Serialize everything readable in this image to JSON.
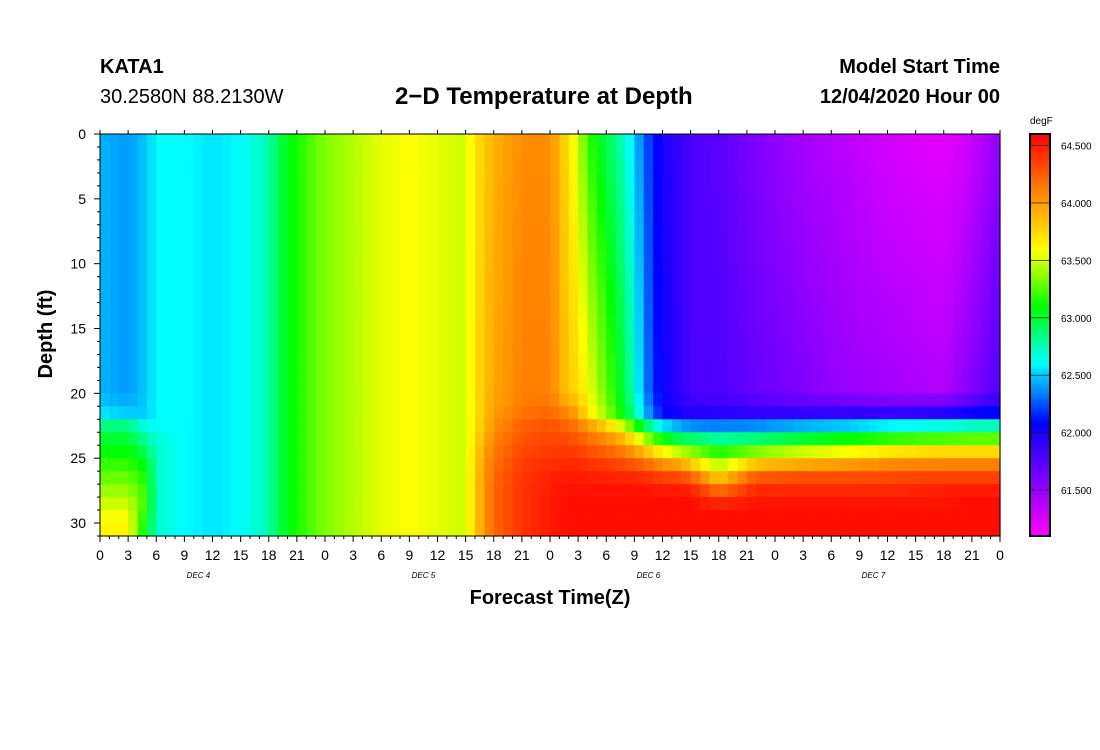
{
  "header": {
    "station": "KATA1",
    "coords": "30.2580N 88.2130W",
    "title": "2−D Temperature at Depth",
    "start_label": "Model Start Time",
    "start_value": "12/04/2020 Hour 00"
  },
  "chart_data": {
    "type": "heatmap",
    "title": "2−D Temperature at Depth",
    "xlabel": "Forecast Time(Z)",
    "ylabel": "Depth (ft)",
    "x_range_hours": [
      0,
      96
    ],
    "x_tick_labels": [
      "0",
      "3",
      "6",
      "9",
      "12",
      "15",
      "18",
      "21",
      "0",
      "3",
      "6",
      "9",
      "12",
      "15",
      "18",
      "21",
      "0",
      "3",
      "6",
      "9",
      "12",
      "15",
      "18",
      "21",
      "0",
      "3",
      "6",
      "9",
      "12",
      "15",
      "18",
      "21",
      "0"
    ],
    "day_labels": [
      {
        "label": "DEC 4",
        "hour": 10.5
      },
      {
        "label": "DEC 5",
        "hour": 34.5
      },
      {
        "label": "DEC 6",
        "hour": 58.5
      },
      {
        "label": "DEC 7",
        "hour": 82.5
      }
    ],
    "y_range": [
      0,
      31
    ],
    "y_ticks": [
      0,
      5,
      10,
      15,
      20,
      25,
      30
    ],
    "y_tick_labels": [
      "0",
      "5",
      "10",
      "15",
      "20",
      "25",
      "30"
    ],
    "colorbar": {
      "unit": "degF",
      "min": 61.1,
      "max": 64.6,
      "labels": [
        "64.500",
        "64.000",
        "63.500",
        "63.000",
        "62.500",
        "62.000",
        "61.500"
      ],
      "label_values": [
        64.5,
        64.0,
        63.5,
        63.0,
        62.5,
        62.0,
        61.5
      ],
      "colors": [
        "#ff00ff",
        "#8000ff",
        "#0000ff",
        "#00ffff",
        "#00ff00",
        "#ffff00",
        "#ff8000",
        "#ff0000"
      ]
    },
    "column_hours": [
      0,
      3,
      5,
      6,
      9,
      12,
      15,
      18,
      19,
      21,
      24,
      27,
      30,
      33,
      36,
      39,
      40,
      42,
      45,
      48,
      50,
      51,
      52,
      54,
      56,
      57,
      58,
      59,
      60,
      62,
      63,
      66,
      70,
      75,
      80,
      85,
      90,
      93,
      96
    ],
    "depth_profile_ft": [
      0,
      20,
      21.5,
      22,
      23,
      24,
      25,
      26,
      27,
      28,
      29,
      30,
      31
    ],
    "temperature_degF": [
      [
        62.45,
        62.45,
        62.55,
        62.75,
        62.95,
        63.05,
        63.15,
        63.25,
        63.35,
        63.45,
        63.55,
        63.62,
        63.65
      ],
      [
        62.4,
        62.4,
        62.5,
        62.75,
        62.95,
        63.05,
        63.15,
        63.25,
        63.35,
        63.45,
        63.55,
        63.62,
        63.65
      ],
      [
        62.5,
        62.5,
        62.5,
        62.55,
        62.7,
        62.85,
        63.0,
        63.1,
        63.15,
        63.2,
        63.15,
        63.05,
        63.0
      ],
      [
        62.6,
        62.6,
        62.6,
        62.6,
        62.65,
        62.7,
        62.7,
        62.7,
        62.7,
        62.7,
        62.7,
        62.7,
        62.7
      ],
      [
        62.6,
        62.6,
        62.6,
        62.6,
        62.6,
        62.6,
        62.6,
        62.6,
        62.6,
        62.6,
        62.6,
        62.6,
        62.6
      ],
      [
        62.55,
        62.55,
        62.55,
        62.55,
        62.55,
        62.55,
        62.55,
        62.55,
        62.55,
        62.55,
        62.55,
        62.55,
        62.55
      ],
      [
        62.6,
        62.6,
        62.6,
        62.6,
        62.6,
        62.6,
        62.6,
        62.6,
        62.6,
        62.6,
        62.6,
        62.6,
        62.6
      ],
      [
        62.75,
        62.75,
        62.75,
        62.75,
        62.75,
        62.75,
        62.75,
        62.75,
        62.75,
        62.75,
        62.75,
        62.75,
        62.75
      ],
      [
        62.95,
        62.95,
        62.95,
        62.95,
        62.95,
        62.95,
        62.95,
        62.95,
        62.95,
        62.95,
        62.95,
        62.95,
        62.95
      ],
      [
        63.15,
        63.15,
        63.15,
        63.15,
        63.15,
        63.15,
        63.15,
        63.15,
        63.15,
        63.15,
        63.15,
        63.15,
        63.15
      ],
      [
        63.35,
        63.35,
        63.35,
        63.35,
        63.35,
        63.35,
        63.35,
        63.35,
        63.35,
        63.35,
        63.35,
        63.35,
        63.35
      ],
      [
        63.45,
        63.45,
        63.45,
        63.45,
        63.45,
        63.45,
        63.45,
        63.45,
        63.45,
        63.45,
        63.45,
        63.45,
        63.45
      ],
      [
        63.55,
        63.55,
        63.55,
        63.55,
        63.55,
        63.55,
        63.55,
        63.55,
        63.55,
        63.55,
        63.55,
        63.55,
        63.55
      ],
      [
        63.6,
        63.6,
        63.6,
        63.6,
        63.6,
        63.6,
        63.6,
        63.6,
        63.6,
        63.6,
        63.6,
        63.6,
        63.6
      ],
      [
        63.55,
        63.55,
        63.55,
        63.55,
        63.55,
        63.55,
        63.55,
        63.55,
        63.55,
        63.55,
        63.55,
        63.55,
        63.55
      ],
      [
        63.5,
        63.5,
        63.5,
        63.5,
        63.5,
        63.5,
        63.5,
        63.5,
        63.5,
        63.5,
        63.5,
        63.5,
        63.5
      ],
      [
        63.7,
        63.7,
        63.7,
        63.7,
        63.72,
        63.75,
        63.78,
        63.8,
        63.8,
        63.8,
        63.8,
        63.8,
        63.8
      ],
      [
        63.9,
        63.95,
        63.98,
        64.0,
        64.05,
        64.1,
        64.15,
        64.18,
        64.2,
        64.2,
        64.2,
        64.2,
        64.2
      ],
      [
        64.05,
        64.1,
        64.15,
        64.2,
        64.25,
        64.3,
        64.35,
        64.38,
        64.4,
        64.4,
        64.4,
        64.4,
        64.4
      ],
      [
        64.05,
        64.1,
        64.2,
        64.25,
        64.3,
        64.35,
        64.4,
        64.45,
        64.48,
        64.5,
        64.5,
        64.5,
        64.5
      ],
      [
        63.7,
        63.8,
        64.05,
        64.15,
        64.25,
        64.35,
        64.4,
        64.48,
        64.52,
        64.55,
        64.55,
        64.55,
        64.55
      ],
      [
        63.5,
        63.75,
        63.95,
        64.05,
        64.2,
        64.3,
        64.4,
        64.48,
        64.52,
        64.55,
        64.55,
        64.55,
        64.55
      ],
      [
        63.2,
        63.6,
        63.7,
        63.9,
        64.1,
        64.25,
        64.35,
        64.45,
        64.5,
        64.55,
        64.55,
        64.55,
        64.55
      ],
      [
        62.95,
        63.3,
        63.4,
        63.6,
        63.95,
        64.15,
        64.3,
        64.45,
        64.5,
        64.55,
        64.55,
        64.55,
        64.55
      ],
      [
        62.7,
        62.95,
        63.05,
        63.2,
        63.7,
        64.0,
        64.2,
        64.4,
        64.5,
        64.55,
        64.55,
        64.55,
        64.55
      ],
      [
        62.5,
        62.7,
        62.8,
        62.95,
        63.5,
        63.85,
        64.15,
        64.4,
        64.5,
        64.55,
        64.55,
        64.55,
        64.55
      ],
      [
        62.3,
        62.4,
        62.5,
        62.7,
        63.2,
        63.7,
        64.05,
        64.35,
        64.5,
        64.55,
        64.55,
        64.55,
        64.55
      ],
      [
        62.15,
        62.2,
        62.3,
        62.5,
        63.0,
        63.55,
        63.95,
        64.3,
        64.48,
        64.55,
        64.55,
        64.55,
        64.55
      ],
      [
        62.0,
        62.05,
        62.1,
        62.3,
        62.8,
        63.4,
        63.85,
        64.25,
        64.45,
        64.55,
        64.55,
        64.55,
        64.55
      ],
      [
        61.9,
        61.9,
        62.0,
        62.2,
        62.65,
        63.2,
        63.7,
        64.2,
        64.45,
        64.55,
        64.55,
        64.55,
        64.55
      ],
      [
        61.8,
        61.8,
        61.95,
        62.1,
        62.65,
        63.15,
        63.6,
        64.05,
        64.4,
        64.55,
        64.55,
        64.55,
        64.55
      ],
      [
        61.75,
        61.8,
        61.95,
        62.1,
        62.6,
        63.0,
        63.3,
        63.6,
        64.0,
        64.35,
        64.55,
        64.55,
        64.55
      ],
      [
        61.6,
        61.7,
        61.9,
        62.1,
        62.65,
        63.1,
        63.6,
        64.1,
        64.4,
        64.5,
        64.55,
        64.55,
        64.55
      ],
      [
        61.45,
        61.6,
        61.9,
        62.2,
        62.7,
        63.3,
        63.7,
        64.2,
        64.4,
        64.5,
        64.55,
        64.55,
        64.55
      ],
      [
        61.35,
        61.5,
        61.9,
        62.2,
        62.8,
        63.4,
        63.8,
        64.2,
        64.4,
        64.5,
        64.55,
        64.55,
        64.55
      ],
      [
        61.25,
        61.45,
        61.9,
        62.3,
        62.9,
        63.5,
        63.9,
        64.25,
        64.4,
        64.5,
        64.55,
        64.55,
        64.55
      ],
      [
        61.2,
        61.4,
        61.95,
        62.35,
        62.95,
        63.55,
        63.95,
        64.25,
        64.45,
        64.5,
        64.55,
        64.55,
        64.55
      ],
      [
        61.3,
        61.6,
        62.05,
        62.45,
        63.0,
        63.55,
        63.95,
        64.25,
        64.45,
        64.55,
        64.55,
        64.55,
        64.55
      ],
      [
        61.55,
        61.8,
        62.1,
        62.45,
        63.0,
        63.55,
        63.95,
        64.25,
        64.45,
        64.55,
        64.55,
        64.55,
        64.55
      ]
    ]
  }
}
